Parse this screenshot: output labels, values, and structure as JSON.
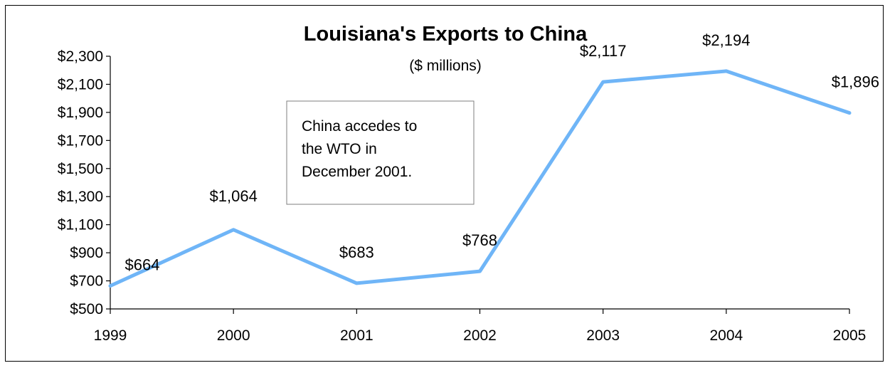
{
  "chart_data": {
    "type": "line",
    "title": "Louisiana's Exports to China",
    "subtitle": "($ millions)",
    "categories": [
      "1999",
      "2000",
      "2001",
      "2002",
      "2003",
      "2004",
      "2005"
    ],
    "series": [
      {
        "values": [
          664,
          1064,
          683,
          768,
          2117,
          2194,
          1896
        ],
        "labels": [
          "$664",
          "$1,064",
          "$683",
          "$768",
          "$2,117",
          "$2,194",
          "$1,896"
        ],
        "color": "#6fb5f7"
      }
    ],
    "ylim": [
      500,
      2300
    ],
    "yticks": [
      500,
      700,
      900,
      1100,
      1300,
      1500,
      1700,
      1900,
      2100,
      2300
    ],
    "ytick_labels": [
      "$500",
      "$700",
      "$900",
      "$1,100",
      "$1,300",
      "$1,500",
      "$1,700",
      "$1,900",
      "$2,100",
      "$2,300"
    ],
    "grid": false,
    "legend": "none",
    "annotation": {
      "lines": [
        "China accedes to",
        "the WTO in",
        "December 2001."
      ]
    }
  }
}
